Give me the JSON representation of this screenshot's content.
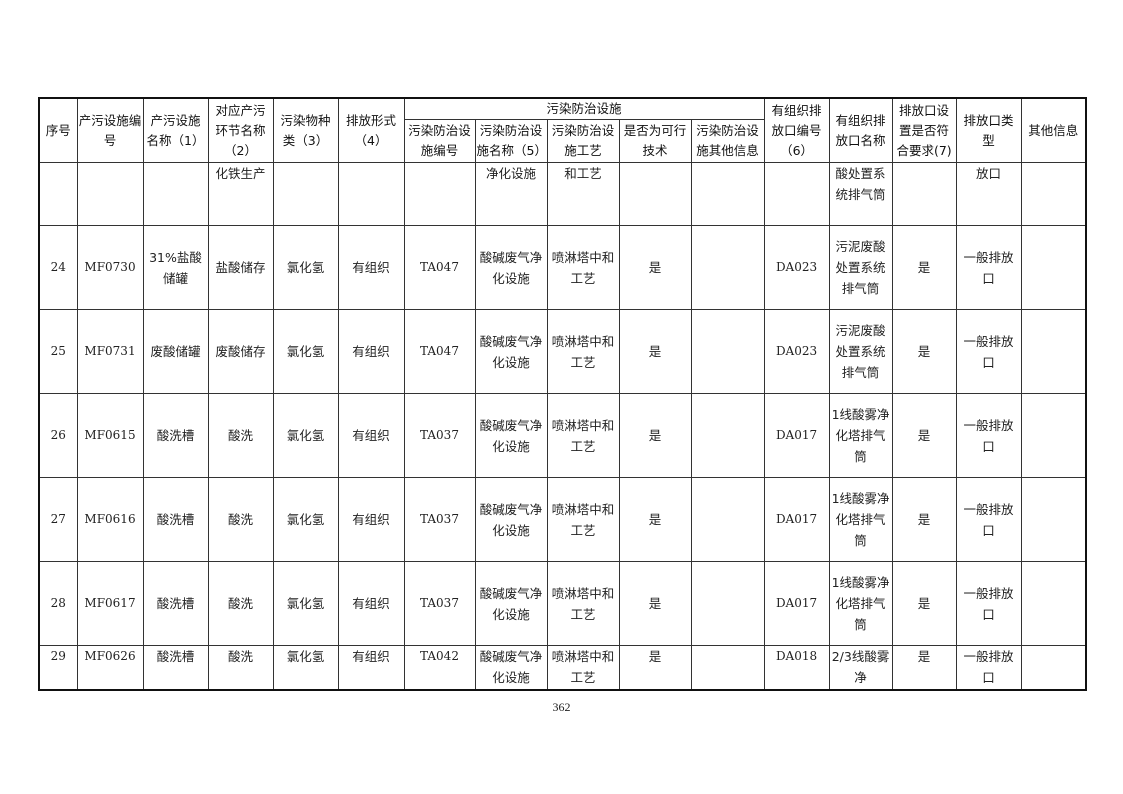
{
  "headers": {
    "seq": "序号",
    "facility_id": "产污设施编号",
    "facility_name": "产污设施名称（1）",
    "process": "对应产污环节名称（2）",
    "pollutant": "污染物种类（3）",
    "emission_form": "排放形式（4）",
    "control_group": "污染防治设施",
    "control_id": "污染防治设施编号",
    "control_name": "污染防治设施名称（5）",
    "control_tech": "污染防治设施工艺",
    "feasible": "是否为可行技术",
    "control_other": "污染防治设施其他信息",
    "outlet_id": "有组织排放口编号（6）",
    "outlet_name": "有组织排放口名称",
    "outlet_ok": "排放口设置是否符合要求(7)",
    "outlet_type": "排放口类型",
    "other": "其他信息"
  },
  "continued_row": [
    "",
    "",
    "",
    "化铁生产",
    "",
    "",
    "",
    "净化设施",
    "和工艺",
    "",
    "",
    "",
    "酸处置系统排气筒",
    "",
    "放口",
    ""
  ],
  "rows": [
    [
      "24",
      "MF0730",
      "31%盐酸储罐",
      "盐酸储存",
      "氯化氢",
      "有组织",
      "TA047",
      "酸碱废气净化设施",
      "喷淋塔中和工艺",
      "是",
      "",
      "DA023",
      "污泥废酸处置系统排气筒",
      "是",
      "一般排放口",
      ""
    ],
    [
      "25",
      "MF0731",
      "废酸储罐",
      "废酸储存",
      "氯化氢",
      "有组织",
      "TA047",
      "酸碱废气净化设施",
      "喷淋塔中和工艺",
      "是",
      "",
      "DA023",
      "污泥废酸处置系统排气筒",
      "是",
      "一般排放口",
      ""
    ],
    [
      "26",
      "MF0615",
      "酸洗槽",
      "酸洗",
      "氯化氢",
      "有组织",
      "TA037",
      "酸碱废气净化设施",
      "喷淋塔中和工艺",
      "是",
      "",
      "DA017",
      "1线酸雾净化塔排气筒",
      "是",
      "一般排放口",
      ""
    ],
    [
      "27",
      "MF0616",
      "酸洗槽",
      "酸洗",
      "氯化氢",
      "有组织",
      "TA037",
      "酸碱废气净化设施",
      "喷淋塔中和工艺",
      "是",
      "",
      "DA017",
      "1线酸雾净化塔排气筒",
      "是",
      "一般排放口",
      ""
    ],
    [
      "28",
      "MF0617",
      "酸洗槽",
      "酸洗",
      "氯化氢",
      "有组织",
      "TA037",
      "酸碱废气净化设施",
      "喷淋塔中和工艺",
      "是",
      "",
      "DA017",
      "1线酸雾净化塔排气筒",
      "是",
      "一般排放口",
      ""
    ],
    [
      "29",
      "MF0626",
      "酸洗槽",
      "酸洗",
      "氯化氢",
      "有组织",
      "TA042",
      "酸碱废气净化设施",
      "喷淋塔中和工艺",
      "是",
      "",
      "DA018",
      "2/3线酸雾净",
      "是",
      "一般排放口",
      ""
    ]
  ],
  "page_number": "362"
}
